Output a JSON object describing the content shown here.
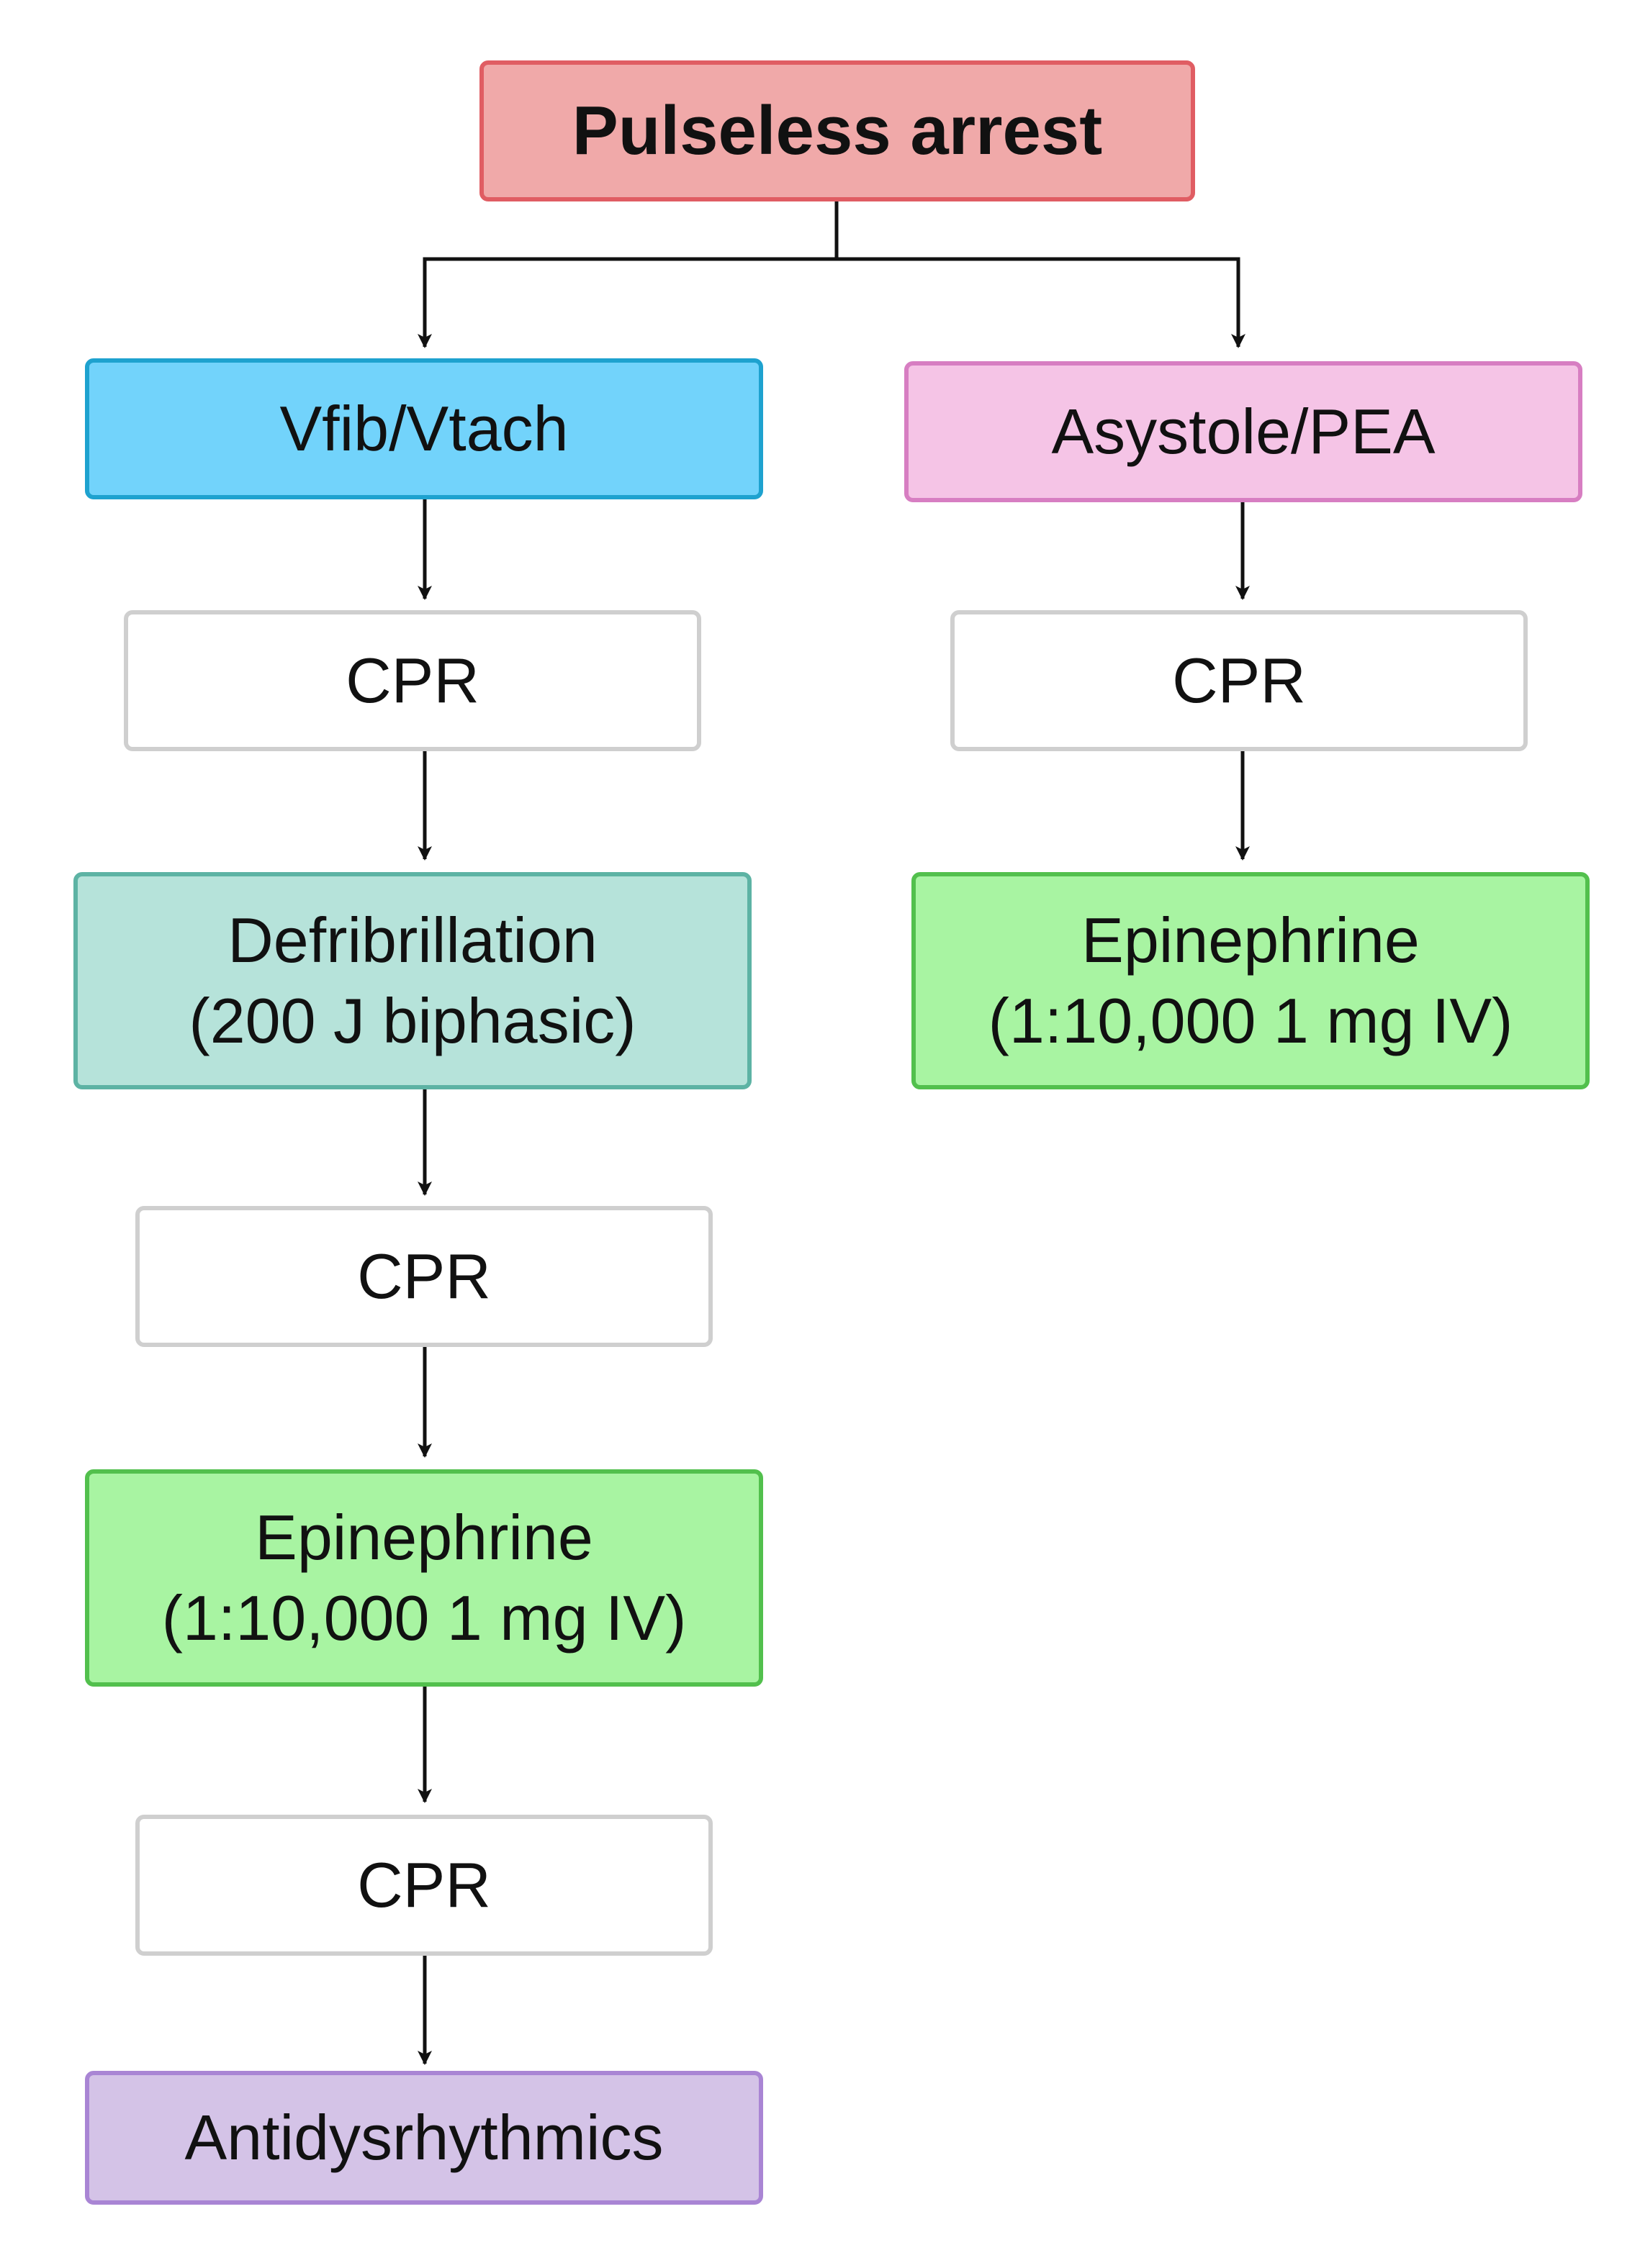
{
  "nodes": {
    "pulseless_arrest": "Pulseless arrest",
    "vfib_vtach": "Vfib/Vtach",
    "asystole_pea": "Asystole/PEA",
    "cpr": "CPR",
    "defibrillation": {
      "line1": "Defribrillation",
      "line2": "(200 J biphasic)"
    },
    "epinephrine": {
      "line1": "Epinephrine",
      "line2": "(1:10,000 1 mg IV)"
    },
    "antidysrhythmics": "Antidysrhythmics"
  },
  "colors": {
    "title_fill": "#f0a9a9",
    "title_border": "#e05d63",
    "vfib_fill": "#72d3fb",
    "vfib_border": "#1ea2cf",
    "asystole_fill": "#f5c4e6",
    "asystole_border": "#d77ec2",
    "cpr_fill": "#ffffff",
    "cpr_border": "#cfcfcf",
    "defib_fill": "#b6e3da",
    "defib_border": "#5db3a4",
    "epi_fill": "#a8f4a2",
    "epi_border": "#52c04d",
    "anti_fill": "#d4c3e7",
    "anti_border": "#a985d4",
    "arrow": "#111111"
  }
}
